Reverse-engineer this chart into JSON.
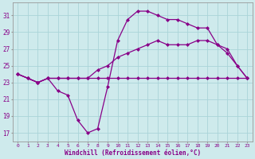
{
  "background_color": "#ceeaec",
  "grid_color": "#aad4d8",
  "line_color": "#880088",
  "marker": "D",
  "markersize": 2.0,
  "linewidth": 0.9,
  "xlabel": "Windchill (Refroidissement éolien,°C)",
  "xlabel_color": "#880088",
  "tick_color": "#880088",
  "ylabel_ticks": [
    17,
    19,
    21,
    23,
    25,
    27,
    29,
    31
  ],
  "xlim": [
    -0.5,
    23.5
  ],
  "ylim": [
    16.0,
    32.5
  ],
  "s1": [
    24.0,
    23.5,
    23.0,
    23.5,
    22.0,
    21.5,
    18.5,
    17.0,
    17.5,
    22.5,
    28.0,
    30.5,
    31.5,
    31.5,
    31.0,
    30.5,
    30.5,
    30.0,
    29.5,
    29.5,
    27.5,
    26.5,
    25.0,
    23.5
  ],
  "s2": [
    24.0,
    23.5,
    23.0,
    23.5,
    23.5,
    23.5,
    23.5,
    23.5,
    24.5,
    25.0,
    26.0,
    26.5,
    27.0,
    27.5,
    28.0,
    27.5,
    27.5,
    27.5,
    28.0,
    28.0,
    27.5,
    27.0,
    25.0,
    23.5
  ],
  "s3": [
    24.0,
    23.5,
    23.0,
    23.5,
    23.5,
    23.5,
    23.5,
    23.5,
    23.5,
    23.5,
    23.5,
    23.5,
    23.5,
    23.5,
    23.5,
    23.5,
    23.5,
    23.5,
    23.5,
    23.5,
    23.5,
    23.5,
    23.5,
    23.5
  ]
}
